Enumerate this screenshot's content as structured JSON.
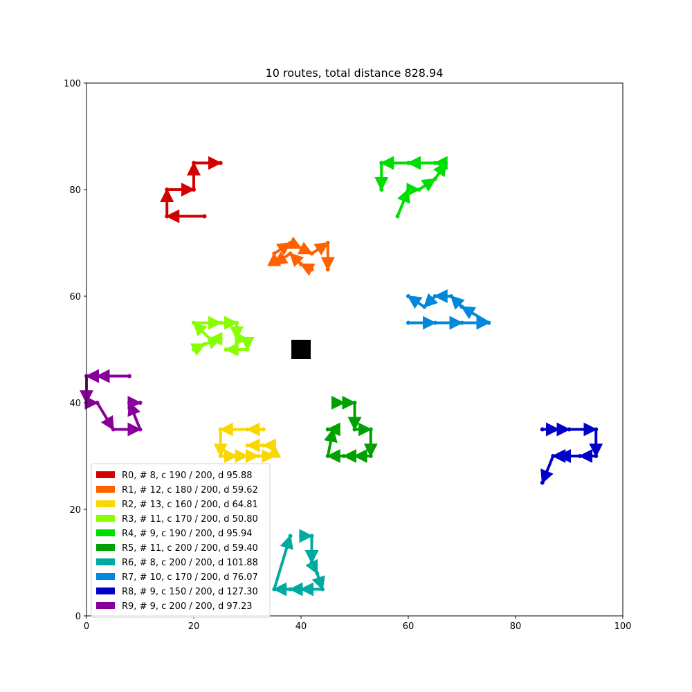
{
  "chart_data": {
    "type": "scatter",
    "title": "10 routes, total distance 828.94",
    "xlabel": "",
    "ylabel": "",
    "xlim": [
      0,
      100
    ],
    "ylim": [
      0,
      100
    ],
    "xticks": [
      "0",
      "20",
      "40",
      "60",
      "80",
      "100"
    ],
    "yticks": [
      "0",
      "20",
      "40",
      "60",
      "80",
      "100"
    ],
    "grid": false,
    "legend_position": "lower-left",
    "depot": {
      "x": 40,
      "y": 50,
      "color": "#000000"
    },
    "series": [
      {
        "name": "R0, # 8, c 190 / 200, d 95.88",
        "color": "#d40000",
        "points": [
          [
            40,
            50
          ],
          [
            22,
            75
          ],
          [
            15,
            75
          ],
          [
            15,
            80
          ],
          [
            20,
            80
          ],
          [
            20,
            85
          ],
          [
            25,
            85
          ]
        ]
      },
      {
        "name": "R1, # 12, c 180 / 200, d 59.62",
        "color": "#ff6000",
        "points": [
          [
            40,
            50
          ],
          [
            42,
            65
          ],
          [
            40,
            66
          ],
          [
            38,
            68
          ],
          [
            35,
            66
          ],
          [
            35,
            68
          ],
          [
            38,
            70
          ],
          [
            40,
            69
          ],
          [
            42,
            68
          ],
          [
            45,
            70
          ],
          [
            45,
            65
          ]
        ]
      },
      {
        "name": "R2, # 13, c 160 / 200, d 64.81",
        "color": "#f8d800",
        "points": [
          [
            40,
            50
          ],
          [
            33,
            35
          ],
          [
            30,
            35
          ],
          [
            25,
            35
          ],
          [
            25,
            30
          ],
          [
            28,
            30
          ],
          [
            30,
            30
          ],
          [
            32,
            30
          ],
          [
            35,
            30
          ],
          [
            35,
            32
          ],
          [
            33,
            32
          ],
          [
            30,
            32
          ]
        ]
      },
      {
        "name": "R3, # 11, c 170 / 200, d 50.80",
        "color": "#88ff00",
        "points": [
          [
            40,
            50
          ],
          [
            20,
            50
          ],
          [
            22,
            51
          ],
          [
            25,
            52
          ],
          [
            23,
            52
          ],
          [
            20,
            55
          ],
          [
            25,
            55
          ],
          [
            28,
            55
          ],
          [
            28,
            52
          ],
          [
            30,
            52
          ],
          [
            30,
            50
          ],
          [
            26,
            50
          ]
        ]
      },
      {
        "name": "R4, # 9, c 190 / 200, d 95.94",
        "color": "#00dd00",
        "points": [
          [
            40,
            50
          ],
          [
            58,
            75
          ],
          [
            60,
            80
          ],
          [
            62,
            80
          ],
          [
            65,
            82
          ],
          [
            67,
            85
          ],
          [
            65,
            85
          ],
          [
            60,
            85
          ],
          [
            55,
            85
          ],
          [
            55,
            80
          ]
        ]
      },
      {
        "name": "R5, # 11, c 200 / 200, d 59.40",
        "color": "#00a000",
        "points": [
          [
            40,
            50
          ],
          [
            47,
            40
          ],
          [
            48,
            40
          ],
          [
            50,
            40
          ],
          [
            50,
            35
          ],
          [
            53,
            35
          ],
          [
            53,
            30
          ],
          [
            50,
            30
          ],
          [
            48,
            30
          ],
          [
            45,
            30
          ],
          [
            46,
            35
          ],
          [
            45,
            35
          ]
        ]
      },
      {
        "name": "R6, # 8, c 200 / 200, d 101.88",
        "color": "#00aaa0",
        "points": [
          [
            40,
            50
          ],
          [
            40,
            15
          ],
          [
            42,
            15
          ],
          [
            42,
            10
          ],
          [
            43,
            8
          ],
          [
            44,
            5
          ],
          [
            40,
            5
          ],
          [
            38,
            5
          ],
          [
            35,
            5
          ],
          [
            38,
            15
          ]
        ]
      },
      {
        "name": "R7, # 10, c 170 / 200, d 76.07",
        "color": "#0088dd",
        "points": [
          [
            40,
            50
          ],
          [
            60,
            55
          ],
          [
            65,
            55
          ],
          [
            70,
            55
          ],
          [
            75,
            55
          ],
          [
            70,
            58
          ],
          [
            68,
            60
          ],
          [
            65,
            60
          ],
          [
            63,
            58
          ],
          [
            60,
            60
          ]
        ]
      },
      {
        "name": "R8, # 9, c 150 / 200, d 127.30",
        "color": "#0000c8",
        "points": [
          [
            40,
            50
          ],
          [
            85,
            35
          ],
          [
            88,
            35
          ],
          [
            90,
            35
          ],
          [
            95,
            35
          ],
          [
            95,
            30
          ],
          [
            92,
            30
          ],
          [
            88,
            30
          ],
          [
            87,
            30
          ],
          [
            85,
            25
          ]
        ]
      },
      {
        "name": "R9, # 9, c 200 / 200, d 97.23",
        "color": "#880099",
        "points": [
          [
            40,
            50
          ],
          [
            8,
            45
          ],
          [
            2,
            45
          ],
          [
            0,
            45
          ],
          [
            0,
            40
          ],
          [
            2,
            40
          ],
          [
            5,
            35
          ],
          [
            10,
            35
          ],
          [
            8,
            40
          ],
          [
            10,
            40
          ]
        ]
      }
    ]
  }
}
